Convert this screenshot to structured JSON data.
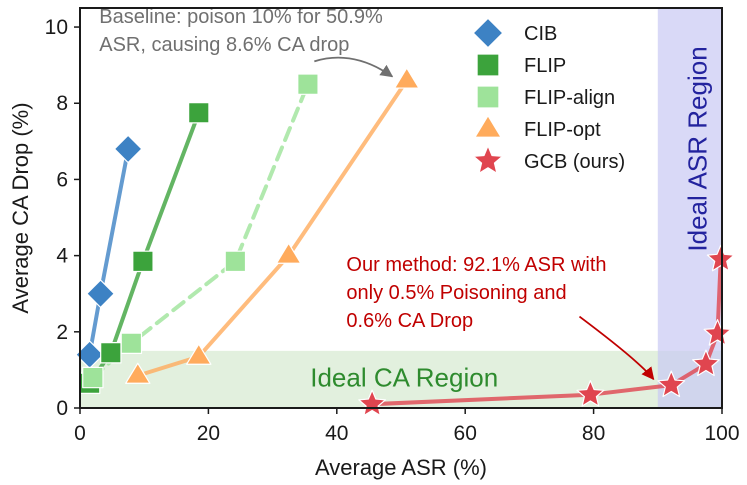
{
  "chart_data": {
    "type": "line",
    "xlabel": "Average ASR (%)",
    "ylabel": "Average CA Drop (%)",
    "xlim": [
      0,
      100
    ],
    "ylim": [
      0,
      10.5
    ],
    "xticks": [
      "0",
      "20",
      "40",
      "60",
      "80",
      "100"
    ],
    "yticks": [
      "0",
      "2",
      "4",
      "6",
      "8",
      "10"
    ],
    "xtick_values": [
      0,
      20,
      40,
      60,
      80,
      100
    ],
    "ytick_values": [
      0,
      2,
      4,
      6,
      8,
      10
    ],
    "grid": false,
    "legend_position": "top-right",
    "regions": [
      {
        "name": "Ideal CA Region",
        "x_range": [
          0,
          100
        ],
        "y_range": [
          0,
          1.5
        ],
        "color": "#2e8b2e",
        "fill": "#d6ead0",
        "label_x": 50.5,
        "label_y": 0.75,
        "orientation": "horizontal"
      },
      {
        "name": "Ideal ASR Region",
        "x_range": [
          90,
          100
        ],
        "y_range": [
          0,
          10.5
        ],
        "color": "#23239e",
        "fill": "#c9c9f4",
        "label_x": 96.5,
        "label_y": 6.8,
        "orientation": "vertical"
      }
    ],
    "series": [
      {
        "name": "CIB",
        "marker": "diamond",
        "color": "#3d82c4",
        "dashed": false,
        "x": [
          1.5,
          3.2,
          7.5
        ],
        "y": [
          1.4,
          3.0,
          6.8
        ]
      },
      {
        "name": "FLIP",
        "marker": "square",
        "color": "#3ca33c",
        "dashed": false,
        "x": [
          1.5,
          4.8,
          9.8,
          18.5
        ],
        "y": [
          0.65,
          1.45,
          3.85,
          7.75
        ]
      },
      {
        "name": "FLIP-align",
        "marker": "square",
        "color": "#9ee39a",
        "dashed": true,
        "x": [
          2.0,
          8.0,
          24.2,
          35.5
        ],
        "y": [
          0.8,
          1.7,
          3.85,
          8.5
        ]
      },
      {
        "name": "FLIP-opt",
        "marker": "triangle",
        "color": "#ffab5c",
        "dashed": false,
        "x": [
          9.0,
          18.5,
          32.5,
          50.9
        ],
        "y": [
          0.85,
          1.35,
          4.0,
          8.6
        ]
      },
      {
        "name": "GCB (ours)",
        "marker": "star",
        "color": "#e0454f",
        "dashed": false,
        "x": [
          45.5,
          79.5,
          92.1,
          97.5,
          99.3,
          99.8
        ],
        "y": [
          0.1,
          0.35,
          0.6,
          1.15,
          1.95,
          3.9
        ]
      }
    ],
    "annotations": [
      {
        "name": "baseline",
        "lines": [
          "Baseline: poison 10% for 50.9%",
          "ASR, causing 8.6% CA drop"
        ],
        "color": "#707070",
        "text_x": 3.0,
        "text_y": 10.1,
        "target_x": 50.5,
        "target_y": 8.65
      },
      {
        "name": "ours",
        "lines": [
          "Our method: 92.1% ASR with",
          "only 0.5% Poisoning and",
          "0.6% CA Drop"
        ],
        "color": "#c00000",
        "text_x": 41.5,
        "text_y": 3.6,
        "target_x": 91.2,
        "target_y": 0.6
      }
    ]
  }
}
